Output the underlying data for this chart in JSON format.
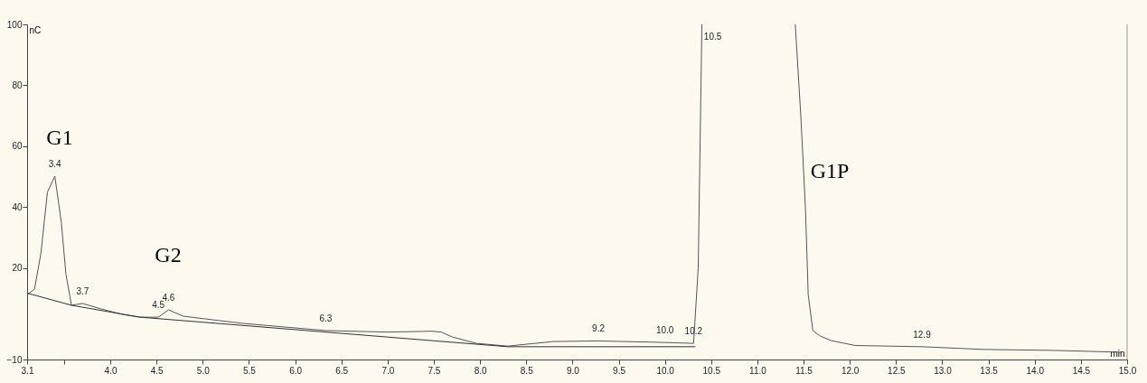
{
  "chart_data": {
    "type": "line",
    "xlabel": "min",
    "ylabel": "nC",
    "xlim": [
      3.1,
      15.0
    ],
    "ylim": [
      -10,
      100
    ],
    "xticks": [
      3.1,
      {
        "value": 3.5,
        "label": null
      },
      {
        "value": 4,
        "label": "4.0"
      },
      4.5,
      {
        "value": 5,
        "label": "5.0"
      },
      5.5,
      {
        "value": 6,
        "label": "6.0"
      },
      6.5,
      {
        "value": 7,
        "label": "7.0"
      },
      7.5,
      {
        "value": 8,
        "label": "8.0"
      },
      8.5,
      {
        "value": 9,
        "label": "9.0"
      },
      9.5,
      {
        "value": 10,
        "label": "10.0"
      },
      10.5,
      {
        "value": 11,
        "label": "11.0"
      },
      11.5,
      {
        "value": 12,
        "label": "12.0"
      },
      12.5,
      {
        "value": 13,
        "label": "13.0"
      },
      13.5,
      {
        "value": 14,
        "label": "14.0"
      },
      14.5,
      {
        "value": 15,
        "label": "15.0"
      }
    ],
    "yticks": [
      -10,
      20,
      40,
      60,
      80,
      100
    ],
    "grid": false,
    "legend": false,
    "series": [
      {
        "color": "#555555",
        "x": [
          3.1,
          3.18,
          3.25,
          3.32,
          3.4,
          3.47,
          3.52,
          3.58,
          3.7,
          3.9,
          4.13,
          4.32,
          4.52,
          4.63,
          4.79,
          5.42,
          6.33,
          7.0,
          7.48,
          7.58,
          7.7,
          7.96,
          8.3,
          8.79,
          9.28,
          10.0,
          10.31,
          10.36,
          10.4,
          10.9,
          11.41,
          11.47,
          11.52,
          11.55,
          11.6,
          11.68,
          11.8,
          12.06,
          12.78,
          13.45,
          14.2,
          14.93
        ],
        "values": [
          11.3,
          13.1,
          25,
          45,
          50.2,
          35,
          18,
          7.8,
          8.4,
          6.6,
          4.8,
          3.9,
          3.9,
          6.3,
          4.2,
          1.9,
          -0.5,
          -1.0,
          -0.7,
          -1.0,
          -2.6,
          -4.7,
          -5.6,
          -4.1,
          -3.9,
          -4.4,
          -4.7,
          20,
          100,
          null,
          100,
          70,
          39.8,
          11.3,
          -0.5,
          -2.3,
          -3.8,
          -5.4,
          -5.8,
          -6.7,
          -7.0,
          -7.6
        ]
      },
      {
        "color": "#333333",
        "x": [
          3.1,
          3.58,
          4.32,
          8.3,
          10.33
        ],
        "values": [
          11.8,
          7.8,
          3.9,
          -5.8,
          -5.8
        ]
      }
    ],
    "annotations": [
      "G1",
      "G2",
      "G1P",
      {
        "text": "3.4",
        "x": 3.4,
        "y": 50.2
      },
      {
        "text": "3.7",
        "x": 3.7,
        "y": 8.4
      },
      {
        "text": "4.5",
        "x": 4.52,
        "y": 3.9
      },
      {
        "text": "4.6",
        "x": 4.63,
        "y": 6.3
      },
      {
        "text": "6.3",
        "x": 6.33,
        "y": -0.5
      },
      {
        "text": "9.2",
        "x": 9.28,
        "y": -3.9
      },
      {
        "text": "10.0",
        "x": 10.0,
        "y": -4.4
      },
      {
        "text": "10.2",
        "x": 10.31,
        "y": -4.7
      },
      {
        "text": "10.5",
        "x": 10.4,
        "y": 100
      },
      {
        "text": "12.9",
        "x": 12.78,
        "y": -5.8
      }
    ]
  }
}
